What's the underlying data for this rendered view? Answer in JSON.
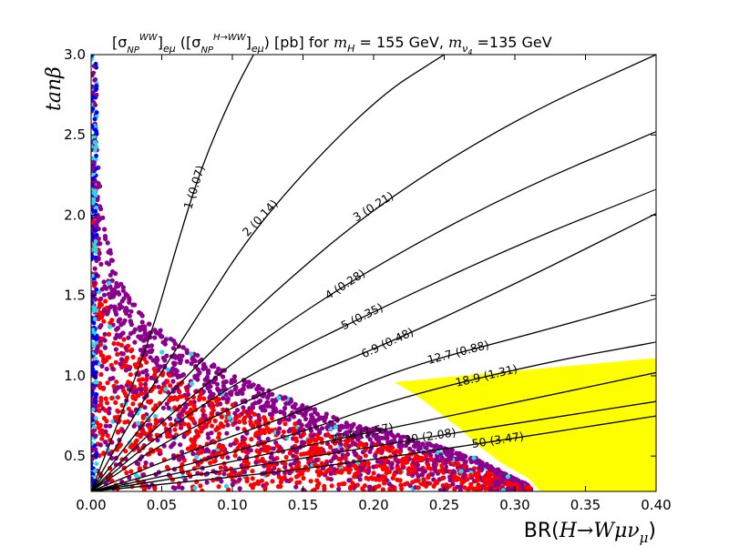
{
  "chart_data": {
    "type": "scatter",
    "title": "[σ_NP^WW]_eμ ([σ_NP^H→WW]_eμ) [pb] for m_H = 155 GeV, m_ν4 =135 GeV",
    "title_parts": {
      "lead": "[σ",
      "sub1": "NP",
      "sup1": "WW",
      "close1": "]",
      "sub_emu1": "eμ",
      "mid": " ([σ",
      "sub2": "NP",
      "sup2": "H→WW",
      "close2": "]",
      "sub_emu2": "eμ",
      "after": ") [pb] for ",
      "mh_m": "m",
      "mh_sub": "H",
      "mh_val": " = 155 GeV, ",
      "mnu_m": "m",
      "mnu_sub": "ν",
      "mnu_sub2": "4",
      "mnu_val": " =135 GeV"
    },
    "xlabel": "BR(H→Wμν_μ)",
    "xlabel_parts": {
      "a": "BR(",
      "b": "H→Wμν",
      "c": "μ",
      "d": ")"
    },
    "ylabel": "tanβ",
    "xlim": [
      0.0,
      0.4
    ],
    "ylim": [
      0.28,
      3.0
    ],
    "xticks": [
      "0.00",
      "0.05",
      "0.10",
      "0.15",
      "0.20",
      "0.25",
      "0.30",
      "0.35",
      "0.40"
    ],
    "yticks": [
      "0.5",
      "1.0",
      "1.5",
      "2.0",
      "2.5",
      "3.0"
    ],
    "grid": false,
    "scatter_envelope": {
      "description_points": [
        [
          0.0,
          3.0
        ],
        [
          0.005,
          2.3
        ],
        [
          0.01,
          1.9
        ],
        [
          0.02,
          1.6
        ],
        [
          0.03,
          1.45
        ],
        [
          0.05,
          1.28
        ],
        [
          0.08,
          1.1
        ],
        [
          0.12,
          0.93
        ],
        [
          0.17,
          0.75
        ],
        [
          0.22,
          0.63
        ],
        [
          0.27,
          0.5
        ],
        [
          0.3,
          0.36
        ],
        [
          0.315,
          0.3
        ]
      ],
      "colors": {
        "core": "#ff0000",
        "mid": "#8b008b",
        "blue": "#0000ff",
        "cyan": "#29d8e6"
      }
    },
    "excluded_region": {
      "color": "#ffff00",
      "upper_edge": [
        [
          0.215,
          0.96
        ],
        [
          0.25,
          0.99
        ],
        [
          0.3,
          1.03
        ],
        [
          0.35,
          1.07
        ],
        [
          0.4,
          1.11
        ]
      ],
      "left_edge": [
        [
          0.215,
          0.96
        ],
        [
          0.23,
          0.88
        ],
        [
          0.245,
          0.78
        ],
        [
          0.26,
          0.68
        ],
        [
          0.275,
          0.56
        ],
        [
          0.29,
          0.46
        ],
        [
          0.31,
          0.36
        ],
        [
          0.318,
          0.28
        ]
      ]
    },
    "contours": [
      {
        "label": "1 (0.07)",
        "points": [
          [
            0.0,
            0.28
          ],
          [
            0.04,
            1.18
          ],
          [
            0.06,
            1.79
          ],
          [
            0.078,
            2.3
          ],
          [
            0.1,
            2.75
          ],
          [
            0.115,
            3.0
          ]
        ]
      },
      {
        "label": "2 (0.14)",
        "points": [
          [
            0.0,
            0.28
          ],
          [
            0.03,
            0.75
          ],
          [
            0.07,
            1.3
          ],
          [
            0.12,
            1.98
          ],
          [
            0.2,
            2.72
          ],
          [
            0.25,
            3.0
          ]
        ]
      },
      {
        "label": "3 (0.21)",
        "points": [
          [
            0.0,
            0.28
          ],
          [
            0.05,
            0.85
          ],
          [
            0.12,
            1.45
          ],
          [
            0.2,
            2.05
          ],
          [
            0.3,
            2.6
          ],
          [
            0.4,
            3.0
          ]
        ]
      },
      {
        "label": "4 (0.28)",
        "points": [
          [
            0.0,
            0.28
          ],
          [
            0.05,
            0.72
          ],
          [
            0.12,
            1.22
          ],
          [
            0.2,
            1.68
          ],
          [
            0.3,
            2.15
          ],
          [
            0.4,
            2.52
          ]
        ]
      },
      {
        "label": "5 (0.35)",
        "points": [
          [
            0.0,
            0.28
          ],
          [
            0.05,
            0.65
          ],
          [
            0.12,
            1.05
          ],
          [
            0.2,
            1.4
          ],
          [
            0.3,
            1.81
          ],
          [
            0.4,
            2.16
          ]
        ]
      },
      {
        "label": "6.9 (0.48)",
        "points": [
          [
            0.0,
            0.28
          ],
          [
            0.05,
            0.58
          ],
          [
            0.12,
            0.89
          ],
          [
            0.2,
            1.16
          ],
          [
            0.3,
            1.57
          ],
          [
            0.4,
            2.01
          ]
        ]
      },
      {
        "label": "12.7 (0.88)",
        "points": [
          [
            0.0,
            0.28
          ],
          [
            0.06,
            0.5
          ],
          [
            0.15,
            0.78
          ],
          [
            0.22,
            1.05
          ],
          [
            0.32,
            1.28
          ],
          [
            0.4,
            1.48
          ]
        ]
      },
      {
        "label": "18.9 (1.31)",
        "points": [
          [
            0.0,
            0.28
          ],
          [
            0.07,
            0.45
          ],
          [
            0.15,
            0.65
          ],
          [
            0.22,
            0.87
          ],
          [
            0.32,
            1.08
          ],
          [
            0.4,
            1.21
          ]
        ]
      },
      {
        "label": "22.6 (1.57)",
        "points": [
          [
            0.0,
            0.28
          ],
          [
            0.07,
            0.41
          ],
          [
            0.15,
            0.56
          ],
          [
            0.22,
            0.69
          ],
          [
            0.32,
            0.87
          ],
          [
            0.4,
            1.02
          ]
        ]
      },
      {
        "label": "30 (2.08)",
        "points": [
          [
            0.0,
            0.28
          ],
          [
            0.08,
            0.39
          ],
          [
            0.16,
            0.5
          ],
          [
            0.24,
            0.62
          ],
          [
            0.32,
            0.73
          ],
          [
            0.4,
            0.84
          ]
        ]
      },
      {
        "label": "50 (3.47)",
        "points": [
          [
            0.0,
            0.28
          ],
          [
            0.08,
            0.35
          ],
          [
            0.16,
            0.43
          ],
          [
            0.24,
            0.53
          ],
          [
            0.32,
            0.64
          ],
          [
            0.4,
            0.75
          ]
        ]
      }
    ]
  }
}
